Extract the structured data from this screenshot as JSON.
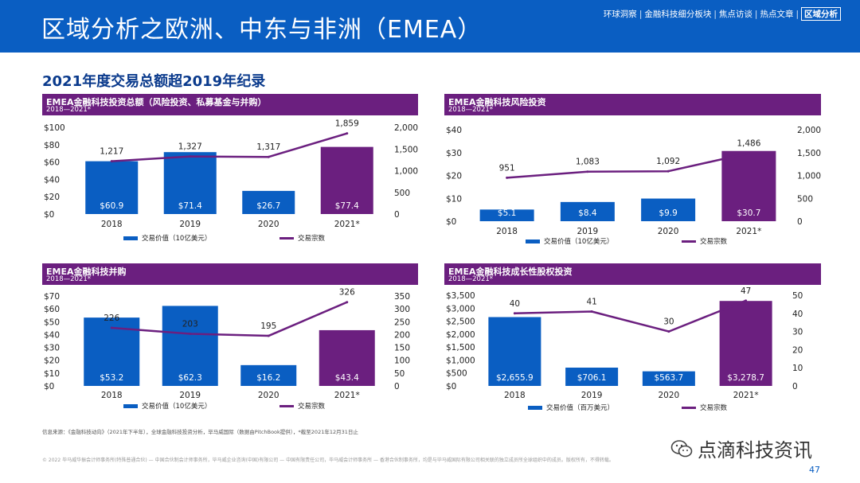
{
  "header": {
    "title": "区域分析之欧洲、中东与非洲（EMEA）",
    "nav": [
      {
        "label": "环球洞察",
        "active": false
      },
      {
        "label": "金融科技细分板块",
        "active": false
      },
      {
        "label": "焦点访谈",
        "active": false
      },
      {
        "label": "热点文章",
        "active": false
      },
      {
        "label": "区域分析",
        "active": true
      }
    ],
    "nav_separator": "|"
  },
  "section_title": "2021年度交易总额超2019年纪录",
  "colors": {
    "header_blue": "#0a5ec2",
    "bar_blue": "#0a5ec2",
    "bar_purple": "#6b1f7f",
    "panel_head": "#6b1f7f",
    "line_purple": "#6b1f7f"
  },
  "chart_data": [
    {
      "id": "total",
      "type": "bar+line",
      "title": "EMEA金融科技投资总额（风险投资、私募基金与并购）",
      "subtitle": "2018—2021*",
      "categories": [
        "2018",
        "2019",
        "2020",
        "2021*"
      ],
      "series": [
        {
          "name": "交易价值（10亿美元）",
          "kind": "bar",
          "axis": "left",
          "values": [
            60.9,
            71.4,
            26.7,
            77.4
          ],
          "labels": [
            "$60.9",
            "$71.4",
            "$26.7",
            "$77.4"
          ],
          "colors": [
            "#0a5ec2",
            "#0a5ec2",
            "#0a5ec2",
            "#6b1f7f"
          ]
        },
        {
          "name": "交易宗数",
          "kind": "line",
          "axis": "right",
          "values": [
            1217,
            1327,
            1317,
            1859
          ],
          "labels": [
            "1,217",
            "1,327",
            "1,317",
            "1,859"
          ]
        }
      ],
      "left_axis": {
        "min": 0,
        "max": 100,
        "ticks": [
          0,
          20,
          40,
          60,
          80,
          100
        ],
        "tick_labels": [
          "$0",
          "$20",
          "$40",
          "$60",
          "$80",
          "$100"
        ]
      },
      "right_axis": {
        "min": 0,
        "max": 2000,
        "ticks": [
          0,
          500,
          1000,
          1500,
          2000
        ],
        "tick_labels": [
          "0",
          "500",
          "1,000",
          "1,500",
          "2,000"
        ]
      }
    },
    {
      "id": "vc",
      "type": "bar+line",
      "title": "EMEA金融科技风险投资",
      "subtitle": "2018—2021*",
      "categories": [
        "2018",
        "2019",
        "2020",
        "2021*"
      ],
      "series": [
        {
          "name": "交易价值（10亿美元）",
          "kind": "bar",
          "axis": "left",
          "values": [
            5.1,
            8.4,
            9.9,
            30.7
          ],
          "labels": [
            "$5.1",
            "$8.4",
            "$9.9",
            "$30.7"
          ],
          "colors": [
            "#0a5ec2",
            "#0a5ec2",
            "#0a5ec2",
            "#6b1f7f"
          ]
        },
        {
          "name": "交易宗数",
          "kind": "line",
          "axis": "right",
          "values": [
            951,
            1083,
            1092,
            1486
          ],
          "labels": [
            "951",
            "1,083",
            "1,092",
            "1,486"
          ]
        }
      ],
      "left_axis": {
        "min": 0,
        "max": 40,
        "ticks": [
          0,
          10,
          20,
          30,
          40
        ],
        "tick_labels": [
          "$0",
          "$10",
          "$20",
          "$30",
          "$40"
        ]
      },
      "right_axis": {
        "min": 0,
        "max": 2000,
        "ticks": [
          0,
          500,
          1000,
          1500,
          2000
        ],
        "tick_labels": [
          "0",
          "500",
          "1,000",
          "1,500",
          "2,000"
        ]
      }
    },
    {
      "id": "ma",
      "type": "bar+line",
      "title": "EMEA金融科技并购",
      "subtitle": "2018—2021*",
      "categories": [
        "2018",
        "2019",
        "2020",
        "2021*"
      ],
      "series": [
        {
          "name": "交易价值（10亿美元）",
          "kind": "bar",
          "axis": "left",
          "values": [
            53.2,
            62.3,
            16.2,
            43.4
          ],
          "labels": [
            "$53.2",
            "$62.3",
            "$16.2",
            "$43.4"
          ],
          "colors": [
            "#0a5ec2",
            "#0a5ec2",
            "#0a5ec2",
            "#6b1f7f"
          ]
        },
        {
          "name": "交易宗数",
          "kind": "line",
          "axis": "right",
          "values": [
            226,
            203,
            195,
            326
          ],
          "labels": [
            "226",
            "203",
            "195",
            "326"
          ]
        }
      ],
      "left_axis": {
        "min": 0,
        "max": 70,
        "ticks": [
          0,
          10,
          20,
          30,
          40,
          50,
          60,
          70
        ],
        "tick_labels": [
          "$0",
          "$10",
          "$20",
          "$30",
          "$40",
          "$50",
          "$60",
          "$70"
        ]
      },
      "right_axis": {
        "min": 0,
        "max": 350,
        "ticks": [
          0,
          50,
          100,
          150,
          200,
          250,
          300,
          350
        ],
        "tick_labels": [
          "0",
          "50",
          "100",
          "150",
          "200",
          "250",
          "300",
          "350"
        ]
      }
    },
    {
      "id": "growth",
      "type": "bar+line",
      "title": "EMEA金融科技成长性股权投资",
      "subtitle": "2018—2021*",
      "categories": [
        "2018",
        "2019",
        "2020",
        "2021*"
      ],
      "series": [
        {
          "name": "交易价值（百万美元）",
          "kind": "bar",
          "axis": "left",
          "values": [
            2655.9,
            706.1,
            563.7,
            3278.7
          ],
          "labels": [
            "$2,655.9",
            "$706.1",
            "$563.7",
            "$3,278.7"
          ],
          "colors": [
            "#0a5ec2",
            "#0a5ec2",
            "#0a5ec2",
            "#6b1f7f"
          ]
        },
        {
          "name": "交易宗数",
          "kind": "line",
          "axis": "right",
          "values": [
            40,
            41,
            30,
            47
          ],
          "labels": [
            "40",
            "41",
            "30",
            "47"
          ]
        }
      ],
      "left_axis": {
        "min": 0,
        "max": 3500,
        "ticks": [
          0,
          500,
          1000,
          1500,
          2000,
          2500,
          3000,
          3500
        ],
        "tick_labels": [
          "$0",
          "$500",
          "$1,000",
          "$1,500",
          "$2,000",
          "$2,500",
          "$3,000",
          "$3,500"
        ]
      },
      "right_axis": {
        "min": 0,
        "max": 50,
        "ticks": [
          0,
          10,
          20,
          30,
          40,
          50
        ],
        "tick_labels": [
          "0",
          "10",
          "20",
          "30",
          "40",
          "50"
        ]
      }
    }
  ],
  "footer": {
    "source": "信息来源：《金融科技动向》（2021年下半年），全球金融科技投资分析，毕马威国际（数据由PitchBook提供），*截至2021年12月31日止",
    "copyright": "© 2022 毕马威华振会计师事务所(特殊普通合伙) — 中国合伙制会计师事务所，毕马威企业咨询(中国)有限公司 — 中国有限责任公司，毕马威会计师事务所 — 香港合伙制事务所，均是与毕马威国际有限公司相关联的独立成员所全球组织中的成员。版权所有，不得转载。"
  },
  "watermark": {
    "text": "点滴科技资讯",
    "icon": "wechat-icon"
  },
  "page_number": "47"
}
